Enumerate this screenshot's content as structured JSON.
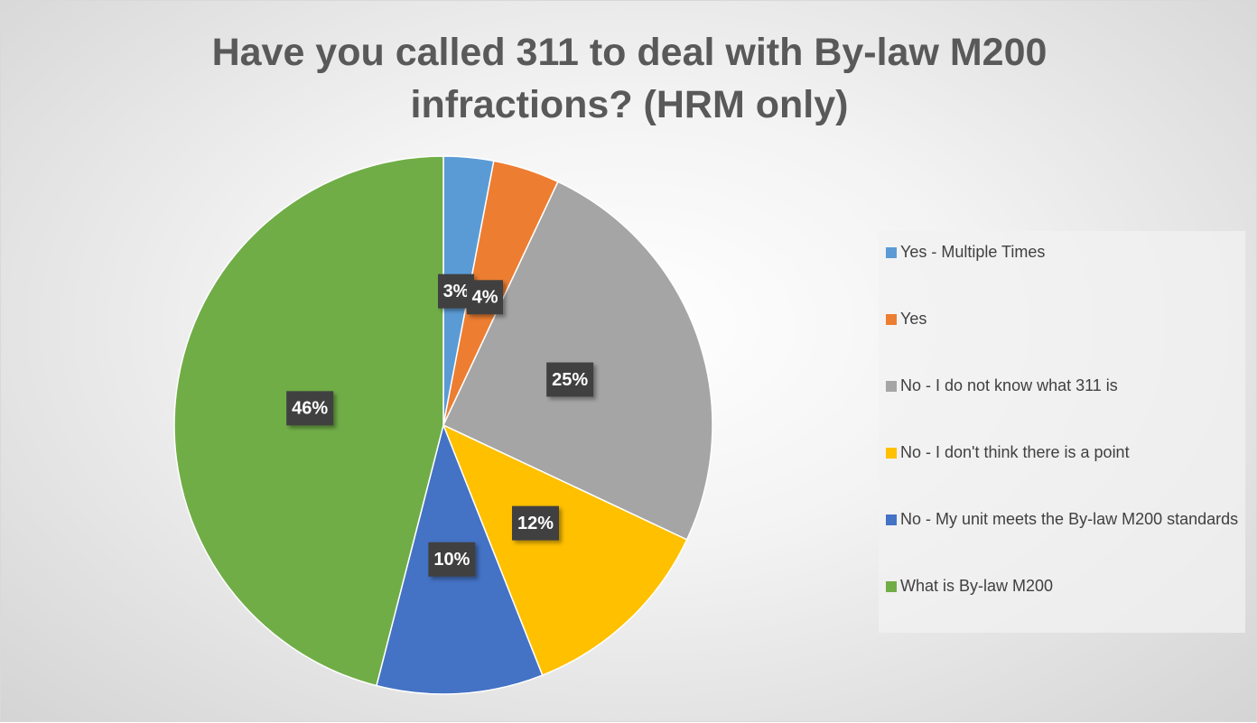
{
  "chart_data": {
    "type": "pie",
    "title": "Have you called 311 to deal with By-law M200 infractions? (HRM only)",
    "categories": [
      "Yes - Multiple Times",
      "Yes",
      "No - I do not know what 311 is",
      "No - I don't think there is a point",
      "No - My unit meets the By-law M200 standards",
      "What is By-law M200"
    ],
    "values": [
      3,
      4,
      25,
      12,
      10,
      46
    ],
    "value_labels": [
      "3%",
      "4%",
      "25%",
      "12%",
      "10%",
      "46%"
    ],
    "colors": [
      "#5b9bd5",
      "#ed7d31",
      "#a5a5a5",
      "#ffc000",
      "#4472c4",
      "#70ad47"
    ],
    "legend": "right"
  }
}
